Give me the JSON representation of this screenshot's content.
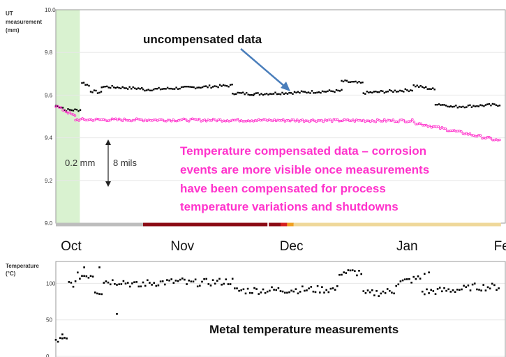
{
  "chart_data": [
    {
      "type": "scatter",
      "ylabel": "UT measurement (mm)",
      "ylabel_lines": [
        "UT",
        "measurement",
        "(mm)"
      ],
      "yticks": [
        {
          "value": 10.0,
          "label": "10.0"
        },
        {
          "value": 9.8,
          "label": "9.8"
        },
        {
          "value": 9.6,
          "label": "9.6"
        },
        {
          "value": 9.4,
          "label": "9.4"
        },
        {
          "value": 9.2,
          "label": "9.2"
        },
        {
          "value": 9.0,
          "label": "9.0"
        }
      ],
      "ylim": [
        9.0,
        10.0
      ],
      "xlim": [
        0,
        152
      ],
      "month_labels": [
        {
          "label": "Oct",
          "day": 7
        },
        {
          "label": "Nov",
          "day": 58
        },
        {
          "label": "Dec",
          "day": 108
        },
        {
          "label": "Jan",
          "day": 161
        },
        {
          "label": "Feb",
          "day": 206
        }
      ],
      "grid": true,
      "series": [
        {
          "key": "uncompensated",
          "color": "#000000",
          "segments": [
            {
              "x0": 0,
              "x1": 4,
              "y0": 9.55,
              "y1": 9.54
            },
            {
              "x0": 4,
              "x1": 12,
              "y0": 9.53,
              "y1": 9.53
            },
            {
              "x0": 12,
              "x1": 16,
              "y0": 9.66,
              "y1": 9.64
            },
            {
              "x0": 16,
              "x1": 21,
              "y0": 9.62,
              "y1": 9.61
            },
            {
              "x0": 21,
              "x1": 40,
              "y0": 9.64,
              "y1": 9.63
            },
            {
              "x0": 40,
              "x1": 81,
              "y0": 9.625,
              "y1": 9.645
            },
            {
              "x0": 81,
              "x1": 91,
              "y0": 9.61,
              "y1": 9.605
            },
            {
              "x0": 91,
              "x1": 131,
              "y0": 9.605,
              "y1": 9.62
            },
            {
              "x0": 131,
              "x1": 141,
              "y0": 9.665,
              "y1": 9.655
            },
            {
              "x0": 141,
              "x1": 164,
              "y0": 9.61,
              "y1": 9.625
            },
            {
              "x0": 164,
              "x1": 174,
              "y0": 9.645,
              "y1": 9.625
            },
            {
              "x0": 174,
              "x1": 181,
              "y0": 9.56,
              "y1": 9.55
            },
            {
              "x0": 181,
              "x1": 204,
              "y0": 9.545,
              "y1": 9.555
            }
          ]
        },
        {
          "key": "compensated",
          "color": "#ff33cc",
          "segments": [
            {
              "x0": 0,
              "x1": 9,
              "y0": 9.55,
              "y1": 9.5
            },
            {
              "x0": 9,
              "x1": 165,
              "y0": 9.485,
              "y1": 9.48
            },
            {
              "x0": 165,
              "x1": 204,
              "y0": 9.47,
              "y1": 9.385
            }
          ]
        }
      ]
    },
    {
      "type": "scatter",
      "ylabel": "Temperature (°C)",
      "ylabel_lines": [
        "Temperature",
        "(°C)"
      ],
      "yticks": [
        {
          "value": 100,
          "label": "100"
        },
        {
          "value": 50,
          "label": "50"
        },
        {
          "value": 0,
          "label": "0"
        }
      ],
      "ylim": [
        0,
        130
      ],
      "grid": true,
      "series": [
        {
          "key": "metal_temperature",
          "color": "#000000",
          "segments": [
            {
              "x0": 0,
              "x1": 6,
              "y0": 22,
              "y1": 22
            },
            {
              "x0": 6,
              "x1": 10,
              "y0": 100,
              "y1": 100
            },
            {
              "x0": 10,
              "x1": 18,
              "y0": 110,
              "y1": 112
            },
            {
              "x0": 18,
              "x1": 22,
              "y0": 90,
              "y1": 88
            },
            {
              "x0": 22,
              "x1": 30,
              "y0": 103,
              "y1": 102
            },
            {
              "x0": 30,
              "x1": 40,
              "y0": 103,
              "y1": 95
            },
            {
              "x0": 40,
              "x1": 60,
              "y0": 100,
              "y1": 103
            },
            {
              "x0": 60,
              "x1": 82,
              "y0": 100,
              "y1": 103
            },
            {
              "x0": 82,
              "x1": 130,
              "y0": 90,
              "y1": 92
            },
            {
              "x0": 130,
              "x1": 141,
              "y0": 115,
              "y1": 115
            },
            {
              "x0": 141,
              "x1": 156,
              "y0": 85,
              "y1": 90
            },
            {
              "x0": 156,
              "x1": 168,
              "y0": 100,
              "y1": 108
            },
            {
              "x0": 168,
              "x1": 190,
              "y0": 88,
              "y1": 93
            },
            {
              "x0": 190,
              "x1": 204,
              "y0": 95,
              "y1": 95
            }
          ],
          "outliers": [
            {
              "x": 28,
              "y": 58
            },
            {
              "x": 3,
              "y": 30
            },
            {
              "x": 13,
              "y": 122
            },
            {
              "x": 20,
              "y": 122
            },
            {
              "x": 171,
              "y": 115
            },
            {
              "x": 169,
              "y": 113
            }
          ]
        }
      ]
    }
  ],
  "annotations": {
    "uncompensated": "uncompensated data",
    "compensated_lines": [
      "Temperature compensated data – corrosion",
      "events are more visible once measurements",
      "have been compensated for process",
      "temperature variations and shutdowns"
    ],
    "scale_mm": "0.2 mm",
    "scale_mils": "8 mils",
    "metal_temp": "Metal temperature measurements"
  },
  "colors": {
    "compensated": "#ff33cc",
    "uncompensated": "#000000",
    "arrow": "#4a7ebb",
    "highlight": "#d9f2d0",
    "grid": "#e8e8e8"
  },
  "status_bar": [
    {
      "x0": 0,
      "x1": 40,
      "color": "#bdbdbd"
    },
    {
      "x0": 40,
      "x1": 103,
      "color": "#8b0a14"
    },
    {
      "x0": 103,
      "x1": 106,
      "color": "#d62020"
    },
    {
      "x0": 106,
      "x1": 109,
      "color": "#f0a020"
    },
    {
      "x0": 109,
      "x1": 204,
      "color": "#efd89a"
    }
  ]
}
